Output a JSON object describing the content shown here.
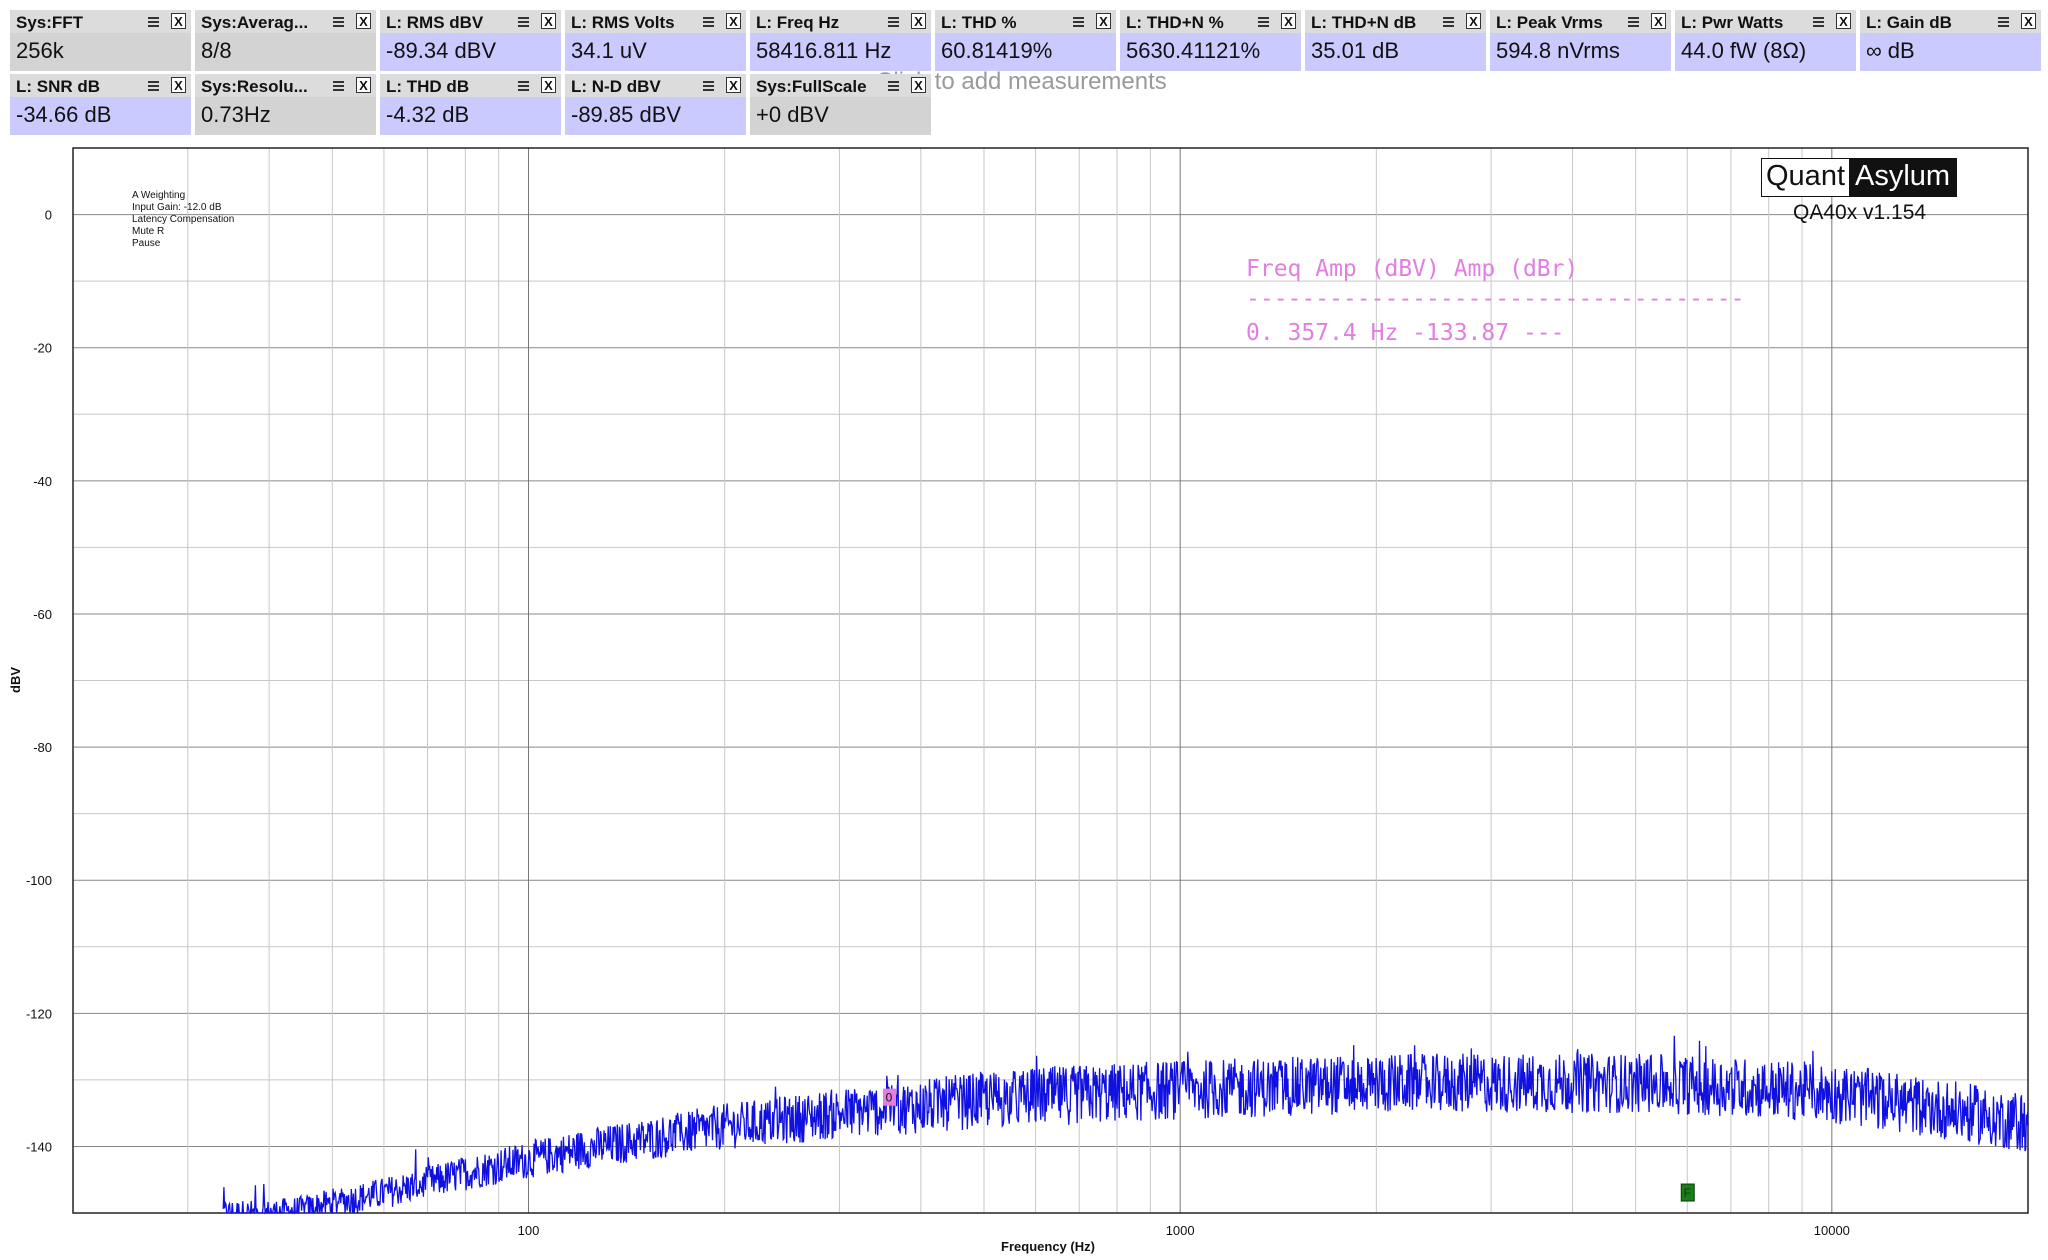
{
  "add_hint": "Click to add measurements",
  "tiles": [
    {
      "title": "Sys:FFT",
      "value": "256k",
      "kind": "sys"
    },
    {
      "title": "Sys:Averag...",
      "value": "8/8",
      "kind": "sys"
    },
    {
      "title": "L: RMS dBV",
      "value": "-89.34 dBV",
      "kind": "l"
    },
    {
      "title": "L: RMS Volts",
      "value": "34.1 uV",
      "kind": "l"
    },
    {
      "title": "L: Freq Hz",
      "value": "58416.811 Hz",
      "kind": "l"
    },
    {
      "title": "L: THD %",
      "value": "60.81419%",
      "kind": "l"
    },
    {
      "title": "L: THD+N %",
      "value": "5630.41121%",
      "kind": "l"
    },
    {
      "title": "L: THD+N dB",
      "value": "35.01 dB",
      "kind": "l"
    },
    {
      "title": "L: Peak Vrms",
      "value": "594.8 nVrms",
      "kind": "l"
    },
    {
      "title": "L: Pwr Watts",
      "value": "44.0 fW (8Ω)",
      "kind": "l"
    },
    {
      "title": "L: Gain dB",
      "value": "∞ dB",
      "kind": "l"
    },
    {
      "title": "L: SNR dB",
      "value": "-34.66 dB",
      "kind": "l"
    },
    {
      "title": "Sys:Resolu...",
      "value": "0.73Hz",
      "kind": "sys"
    },
    {
      "title": "L: THD dB",
      "value": "-4.32 dB",
      "kind": "l"
    },
    {
      "title": "L: N-D dBV",
      "value": "-89.85 dBV",
      "kind": "l"
    },
    {
      "title": "Sys:FullScale",
      "value": "+0 dBV",
      "kind": "sys"
    }
  ],
  "tile_icons": {
    "menu": "hamburger-menu-icon",
    "close": "close-x-icon",
    "close_glyph": "X"
  },
  "logo": {
    "left": "Quant",
    "right": "Asylum",
    "version": "QA40x v1.154"
  },
  "settings_info": [
    "A Weighting",
    "Input Gain: -12.0 dB",
    "Latency Compensation",
    "Mute R",
    "Pause"
  ],
  "marker_table": {
    "header": "    Freq        Amp (dBV)   Amp (dBr)",
    "divider": "------------------------------------",
    "rows": [
      "0.  357.4 Hz    -133.87      ---"
    ]
  },
  "markers": [
    {
      "label": "0",
      "freq_hz": 357.4,
      "amp_dbv": -133.87,
      "color": "#e27ee2"
    },
    {
      "label": "F",
      "freq_hz": 6000,
      "amp_dbv": -147,
      "color": "#1a7d1a"
    }
  ],
  "chart_data": {
    "type": "line",
    "xlabel": "Frequency (Hz)",
    "ylabel": "dBV",
    "x_scale": "log",
    "xlim": [
      20,
      20000
    ],
    "ylim": [
      -150,
      10
    ],
    "x_tick_labels": [
      "100",
      "1000",
      "10000"
    ],
    "y_ticks": [
      0,
      -20,
      -40,
      -60,
      -80,
      -100,
      -120,
      -140
    ],
    "grid": true,
    "series": [
      {
        "color": "#1010e0",
        "x": [
          34,
          40,
          45,
          50,
          60,
          70,
          80,
          100,
          120,
          150,
          200,
          250,
          300,
          400,
          500,
          700,
          1000,
          1500,
          2000,
          3000,
          5000,
          7000,
          10000,
          15000,
          20000
        ],
        "y": [
          -150,
          -150,
          -149.5,
          -148.5,
          -147,
          -145.5,
          -144,
          -142,
          -140.5,
          -139,
          -137,
          -136,
          -135,
          -134,
          -133,
          -132.2,
          -131.5,
          -131,
          -130.5,
          -130.5,
          -130.5,
          -131,
          -132,
          -134.5,
          -136.5
        ]
      }
    ]
  }
}
